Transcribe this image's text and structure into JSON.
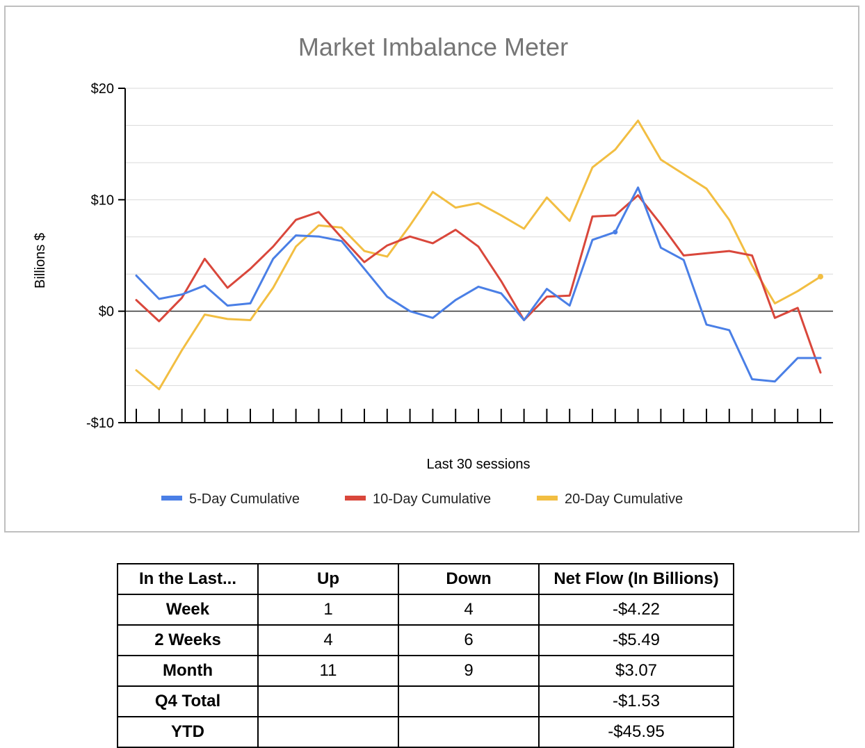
{
  "chart_data": {
    "type": "line",
    "title": "Market Imbalance Meter",
    "xlabel": "Last 30 sessions",
    "ylabel": "Billions $",
    "ylim": [
      -10,
      20
    ],
    "y_ticks": [
      {
        "value": 20,
        "label": "$20"
      },
      {
        "value": 10,
        "label": "$10"
      },
      {
        "value": 0,
        "label": "$0"
      },
      {
        "value": -10,
        "label": "-$10"
      }
    ],
    "gridlines": [
      -10,
      -6.67,
      -3.33,
      0,
      3.33,
      6.67,
      10,
      13.33,
      16.67,
      20
    ],
    "legend_position": "bottom",
    "x": [
      1,
      2,
      3,
      4,
      5,
      6,
      7,
      8,
      9,
      10,
      11,
      12,
      13,
      14,
      15,
      16,
      17,
      18,
      19,
      20,
      21,
      22,
      23,
      24,
      25,
      26,
      27,
      28,
      29,
      30,
      31
    ],
    "series": [
      {
        "name": "5-Day Cumulative",
        "color": "#4a7fe6",
        "values": [
          3.2,
          1.1,
          1.5,
          2.3,
          0.5,
          0.7,
          4.7,
          6.8,
          6.7,
          6.3,
          3.8,
          1.3,
          0.0,
          -0.6,
          1.0,
          2.2,
          1.6,
          -0.8,
          2.0,
          0.5,
          6.4,
          7.1,
          11.1,
          5.7,
          4.6,
          -1.2,
          -1.7,
          -6.1,
          -6.3,
          -4.2,
          -4.2
        ]
      },
      {
        "name": "10-Day Cumulative",
        "color": "#d9473b",
        "values": [
          1.0,
          -0.9,
          1.2,
          4.7,
          2.1,
          3.8,
          5.8,
          8.2,
          8.9,
          6.6,
          4.4,
          5.9,
          6.7,
          6.1,
          7.3,
          5.8,
          2.7,
          -0.8,
          1.3,
          1.4,
          8.5,
          8.6,
          10.4,
          7.8,
          5.0,
          5.2,
          5.4,
          5.0,
          -0.6,
          0.3,
          -5.5
        ]
      },
      {
        "name": "20-Day Cumulative",
        "color": "#f2be42",
        "values": [
          -5.3,
          -7.0,
          -3.5,
          -0.3,
          -0.7,
          -0.8,
          2.1,
          5.8,
          7.7,
          7.5,
          5.4,
          4.9,
          7.7,
          10.7,
          9.3,
          9.7,
          8.6,
          7.4,
          10.2,
          8.1,
          12.9,
          14.5,
          17.1,
          13.6,
          12.3,
          11.0,
          8.2,
          4.1,
          0.7,
          1.8,
          3.1
        ]
      }
    ]
  },
  "table": {
    "headers": [
      "In the Last...",
      "Up",
      "Down",
      "Net Flow (In Billions)"
    ],
    "rows": [
      {
        "label": "Week",
        "up": "1",
        "down": "4",
        "net": "-$4.22"
      },
      {
        "label": "2 Weeks",
        "up": "4",
        "down": "6",
        "net": "-$5.49"
      },
      {
        "label": "Month",
        "up": "11",
        "down": "9",
        "net": "$3.07"
      },
      {
        "label": "Q4 Total",
        "up": "",
        "down": "",
        "net": "-$1.53"
      },
      {
        "label": "YTD",
        "up": "",
        "down": "",
        "net": "-$45.95"
      }
    ]
  }
}
